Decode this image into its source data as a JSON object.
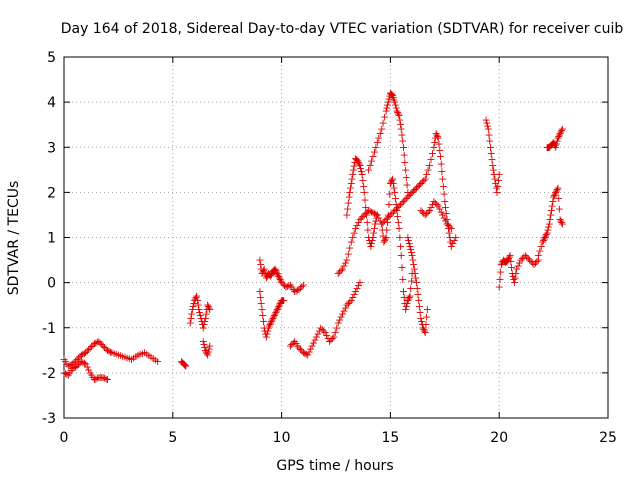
{
  "chart_data": {
    "type": "scatter",
    "title": "Day 164 of 2018, Sidereal Day-to-day VTEC variation (SDTVAR) for receiver cuib",
    "xlabel": "GPS time / hours",
    "ylabel": "SDTVAR / TECUs",
    "xlim": [
      0,
      25
    ],
    "ylim": [
      -3,
      5
    ],
    "xticks": [
      0,
      5,
      10,
      15,
      20,
      25
    ],
    "yticks": [
      -3,
      -2,
      -1,
      0,
      1,
      2,
      3,
      4,
      5
    ],
    "grid": true,
    "marker": "+",
    "series": [
      {
        "name": "track1",
        "color": "#e00000",
        "x": [
          0.0,
          0.2,
          0.4,
          0.6,
          0.8,
          1.0,
          1.2,
          1.4,
          1.6,
          1.8,
          2.0,
          2.2,
          2.5,
          2.8,
          3.1,
          3.4,
          3.7,
          4.0,
          4.3
        ],
        "y": [
          -1.7,
          -1.85,
          -1.8,
          -1.7,
          -1.6,
          -1.55,
          -1.45,
          -1.35,
          -1.3,
          -1.4,
          -1.5,
          -1.55,
          -1.6,
          -1.65,
          -1.7,
          -1.6,
          -1.55,
          -1.65,
          -1.75
        ]
      },
      {
        "name": "track2",
        "color": "#e00000",
        "x": [
          0.0,
          0.2,
          0.4,
          0.6,
          0.8,
          1.0,
          1.2,
          1.4,
          1.6,
          1.8,
          2.0
        ],
        "y": [
          -2.0,
          -2.05,
          -1.9,
          -1.85,
          -1.75,
          -1.8,
          -2.0,
          -2.15,
          -2.1,
          -2.1,
          -2.15
        ]
      },
      {
        "name": "track3",
        "color": "#e00000",
        "x": [
          5.4,
          5.5,
          5.6
        ],
        "y": [
          -1.75,
          -1.8,
          -1.85
        ]
      },
      {
        "name": "track4",
        "color": "#e00000",
        "x": [
          5.8,
          5.9,
          6.0,
          6.1,
          6.2,
          6.3,
          6.4,
          6.5,
          6.6,
          6.7
        ],
        "y": [
          -0.9,
          -0.6,
          -0.4,
          -0.3,
          -0.6,
          -0.8,
          -1.0,
          -0.8,
          -0.5,
          -0.6
        ]
      },
      {
        "name": "track5",
        "color": "#e00000",
        "x": [
          6.4,
          6.5,
          6.6,
          6.7
        ],
        "y": [
          -1.3,
          -1.5,
          -1.6,
          -1.4
        ]
      },
      {
        "name": "track6",
        "color": "#e00000",
        "x": [
          9.0,
          9.1,
          9.2,
          9.3,
          9.4,
          9.5,
          9.6,
          9.7,
          9.8,
          9.9,
          10.0,
          10.2,
          10.4,
          10.6,
          10.8,
          11.0
        ],
        "y": [
          0.5,
          0.2,
          0.3,
          0.1,
          0.2,
          0.15,
          0.25,
          0.3,
          0.2,
          0.1,
          0.0,
          -0.1,
          -0.05,
          -0.2,
          -0.15,
          -0.05
        ]
      },
      {
        "name": "track7",
        "color": "#e00000",
        "x": [
          9.0,
          9.1,
          9.2,
          9.3,
          9.4,
          9.5,
          9.6,
          9.7,
          9.8,
          9.9,
          10.0,
          10.1
        ],
        "y": [
          -0.2,
          -0.6,
          -1.0,
          -1.2,
          -1.0,
          -0.9,
          -0.8,
          -0.7,
          -0.6,
          -0.5,
          -0.4,
          -0.4
        ]
      },
      {
        "name": "track8",
        "color": "#e00000",
        "x": [
          10.4,
          10.6,
          10.8,
          11.0,
          11.2,
          11.4,
          11.6,
          11.8,
          12.0,
          12.2,
          12.4,
          12.6,
          12.8,
          13.0,
          13.2,
          13.4,
          13.6
        ],
        "y": [
          -1.4,
          -1.3,
          -1.45,
          -1.55,
          -1.6,
          -1.4,
          -1.2,
          -1.0,
          -1.1,
          -1.3,
          -1.2,
          -0.9,
          -0.7,
          -0.5,
          -0.4,
          -0.2,
          0.0
        ]
      },
      {
        "name": "track9",
        "color": "#e00000",
        "x": [
          12.6,
          12.8,
          13.0,
          13.2,
          13.4,
          13.6,
          13.8,
          14.0,
          14.2,
          14.4,
          14.6,
          14.8,
          15.0,
          15.2,
          15.4,
          15.6,
          15.8,
          16.0,
          16.2,
          16.4
        ],
        "y": [
          0.2,
          0.3,
          0.5,
          0.9,
          1.2,
          1.4,
          1.5,
          1.6,
          1.55,
          1.5,
          1.3,
          1.4,
          1.5,
          1.6,
          1.7,
          1.8,
          1.9,
          2.0,
          2.1,
          2.2
        ]
      },
      {
        "name": "track10",
        "color": "#e00000",
        "x": [
          13.0,
          13.1,
          13.2,
          13.3,
          13.4,
          13.5,
          13.6,
          13.7,
          13.8,
          13.9,
          14.0,
          14.1,
          14.2,
          14.3,
          14.4
        ],
        "y": [
          1.5,
          1.9,
          2.2,
          2.5,
          2.75,
          2.7,
          2.6,
          2.4,
          2.0,
          1.5,
          1.0,
          0.8,
          1.0,
          1.3,
          1.5
        ]
      },
      {
        "name": "track11",
        "color": "#e00000",
        "x": [
          14.0,
          14.2,
          14.4,
          14.6,
          14.8,
          14.9,
          15.0,
          15.1,
          15.2,
          15.3,
          15.4,
          15.5,
          15.6,
          15.7,
          15.8
        ],
        "y": [
          2.5,
          2.8,
          3.1,
          3.4,
          3.8,
          4.0,
          4.2,
          4.15,
          4.0,
          3.8,
          3.7,
          3.4,
          3.0,
          2.5,
          2.0
        ]
      },
      {
        "name": "track12",
        "color": "#e00000",
        "x": [
          14.6,
          14.7,
          14.8,
          14.9,
          15.0,
          15.1,
          15.2,
          15.3,
          15.4,
          15.5,
          15.6,
          15.7,
          15.8,
          15.9,
          16.0
        ],
        "y": [
          1.3,
          0.9,
          1.0,
          1.5,
          2.2,
          2.3,
          2.0,
          1.6,
          1.2,
          0.6,
          -0.2,
          -0.6,
          -0.4,
          -0.3,
          0.2
        ]
      },
      {
        "name": "track13",
        "color": "#e00000",
        "x": [
          15.8,
          15.9,
          16.0,
          16.1,
          16.2,
          16.3,
          16.4,
          16.5,
          16.6,
          16.7
        ],
        "y": [
          1.0,
          0.8,
          0.6,
          0.3,
          0.0,
          -0.4,
          -0.8,
          -1.0,
          -1.1,
          -0.6
        ]
      },
      {
        "name": "track14",
        "color": "#e00000",
        "x": [
          16.0,
          16.2,
          16.4,
          16.6,
          16.8,
          17.0,
          17.1,
          17.2,
          17.3,
          17.4,
          17.5,
          17.6,
          17.7,
          17.8,
          18.0
        ],
        "y": [
          2.0,
          2.1,
          2.2,
          2.3,
          2.6,
          3.0,
          3.3,
          3.2,
          2.8,
          2.3,
          1.8,
          1.4,
          1.1,
          0.8,
          1.0
        ]
      },
      {
        "name": "track15",
        "color": "#e00000",
        "x": [
          16.4,
          16.6,
          16.8,
          17.0,
          17.2,
          17.4,
          17.6,
          17.8
        ],
        "y": [
          1.6,
          1.5,
          1.6,
          1.8,
          1.7,
          1.5,
          1.3,
          1.2
        ]
      },
      {
        "name": "track16",
        "color": "#e00000",
        "x": [
          19.4,
          19.5,
          19.6,
          19.7,
          19.8,
          19.9,
          20.0
        ],
        "y": [
          3.6,
          3.4,
          3.0,
          2.6,
          2.3,
          2.0,
          2.4
        ]
      },
      {
        "name": "track17",
        "color": "#e00000",
        "x": [
          20.0,
          20.1,
          20.2,
          20.3,
          20.4,
          20.5,
          20.6,
          20.7,
          20.8,
          21.0,
          21.2,
          21.4,
          21.6,
          21.8
        ],
        "y": [
          -0.1,
          0.4,
          0.5,
          0.45,
          0.5,
          0.6,
          0.2,
          0.0,
          0.3,
          0.5,
          0.6,
          0.5,
          0.4,
          0.5
        ]
      },
      {
        "name": "track18",
        "color": "#e00000",
        "x": [
          21.8,
          22.0,
          22.1,
          22.2,
          22.3,
          22.4,
          22.5,
          22.6,
          22.7,
          22.8,
          22.9
        ],
        "y": [
          0.6,
          0.9,
          1.0,
          1.1,
          1.3,
          1.6,
          1.9,
          2.0,
          2.1,
          1.4,
          1.3
        ]
      },
      {
        "name": "track19",
        "color": "#e00000",
        "x": [
          22.2,
          22.3,
          22.4,
          22.5,
          22.6,
          22.7,
          22.8,
          22.9
        ],
        "y": [
          3.0,
          3.0,
          3.05,
          3.1,
          3.0,
          3.2,
          3.3,
          3.4
        ]
      }
    ]
  }
}
